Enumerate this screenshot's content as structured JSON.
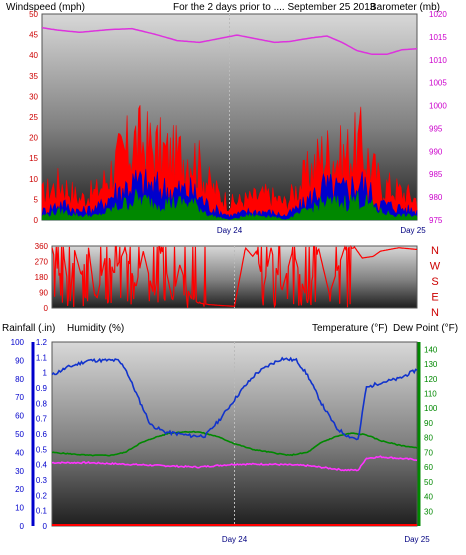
{
  "colors": {
    "wind_speed": "#ff0000",
    "wind_avg": "#0000cc",
    "wind_low": "#008800",
    "barometer": "#dd33dd",
    "humidity": "#1133cc",
    "rainfall": "#ff0000",
    "temperature": "#008800",
    "dew_point": "#ff33ff",
    "title": "#dddd00",
    "tick_red": "#cc0000",
    "tick_blue": "#0000cc",
    "tick_green": "#008800",
    "tick_magenta": "#cc00cc"
  },
  "header": {
    "windspeed_label": "Windspeed (mph)",
    "title": "For the 2 days prior to .... September 25 2013",
    "barometer_label": "Barometer (mb)"
  },
  "chart_data": [
    {
      "type": "line",
      "name": "wind-barometer",
      "x_ticks": [
        "Day 24",
        "Day 25"
      ],
      "y_left": {
        "label": "Windspeed (mph)",
        "range": [
          0,
          50
        ],
        "ticks": [
          0,
          5,
          10,
          15,
          20,
          25,
          30,
          35,
          40,
          45,
          50
        ]
      },
      "y_right": {
        "label": "Barometer (mb)",
        "range": [
          975,
          1020
        ],
        "ticks": [
          975,
          980,
          985,
          990,
          995,
          1000,
          1005,
          1010,
          1015,
          1020
        ]
      },
      "series": [
        {
          "name": "Barometer",
          "axis": "right",
          "x": [
            0,
            0.04,
            0.1,
            0.18,
            0.24,
            0.3,
            0.36,
            0.42,
            0.47,
            0.52,
            0.57,
            0.62,
            0.66,
            0.72,
            0.76,
            0.8,
            0.84,
            0.88,
            0.92,
            0.96,
            1
          ],
          "values": [
            1017,
            1016.5,
            1016,
            1016.6,
            1016.8,
            1015.6,
            1014.2,
            1013.8,
            1014.6,
            1015.4,
            1014.6,
            1013.8,
            1014,
            1014.8,
            1015.2,
            1013.8,
            1012,
            1011.2,
            1011.2,
            1012.2,
            1012.4
          ]
        },
        {
          "name": "Wind gust",
          "x": [
            0,
            0.05,
            0.1,
            0.15,
            0.2,
            0.25,
            0.3,
            0.35,
            0.4,
            0.45,
            0.5,
            0.55,
            0.6,
            0.65,
            0.7,
            0.75,
            0.8,
            0.85,
            0.9,
            0.95,
            1
          ],
          "values": [
            6,
            9,
            5,
            7,
            14,
            19,
            17,
            15,
            16,
            8,
            4,
            5,
            6,
            4,
            10,
            16,
            15,
            18,
            9,
            7,
            5
          ]
        },
        {
          "name": "Wind average",
          "x": [
            0,
            0.05,
            0.1,
            0.15,
            0.2,
            0.25,
            0.3,
            0.35,
            0.4,
            0.45,
            0.5,
            0.55,
            0.6,
            0.65,
            0.7,
            0.75,
            0.8,
            0.85,
            0.9,
            0.95,
            1
          ],
          "values": [
            2,
            4,
            2,
            3,
            7,
            9,
            8,
            7,
            7,
            3,
            1,
            2,
            2,
            1,
            4,
            8,
            7,
            9,
            4,
            3,
            2
          ]
        },
        {
          "name": "Wind low",
          "x": [
            0,
            0.05,
            0.1,
            0.15,
            0.2,
            0.25,
            0.3,
            0.35,
            0.4,
            0.45,
            0.5,
            0.55,
            0.6,
            0.65,
            0.7,
            0.75,
            0.8,
            0.85,
            0.9,
            0.95,
            1
          ],
          "values": [
            1,
            2,
            1,
            1,
            3,
            5,
            4,
            4,
            4,
            1,
            0,
            1,
            1,
            0,
            2,
            4,
            4,
            5,
            2,
            1,
            1
          ]
        }
      ]
    },
    {
      "type": "line",
      "name": "wind-direction",
      "y_left": {
        "range": [
          0,
          360
        ],
        "ticks": [
          0,
          90,
          180,
          270,
          360
        ]
      },
      "y_right_labels": [
        "N",
        "W",
        "S",
        "E",
        "N"
      ],
      "series": [
        {
          "name": "Wind direction",
          "x": [
            0,
            0.02,
            0.03,
            0.05,
            0.06,
            0.08,
            0.1,
            0.12,
            0.15,
            0.17,
            0.2,
            0.23,
            0.25,
            0.28,
            0.3,
            0.33,
            0.35,
            0.38,
            0.4,
            0.43,
            0.46,
            0.5,
            0.53,
            0.55,
            0.56,
            0.58,
            0.6,
            0.63,
            0.66,
            0.7,
            0.73,
            0.76,
            0.8,
            0.83,
            0.85,
            0.88,
            0.9,
            0.95,
            1
          ],
          "values": [
            350,
            180,
            340,
            40,
            350,
            190,
            350,
            20,
            340,
            200,
            345,
            120,
            330,
            60,
            350,
            40,
            250,
            60,
            30,
            20,
            15,
            10,
            350,
            300,
            330,
            120,
            350,
            100,
            340,
            30,
            350,
            80,
            340,
            350,
            290,
            300,
            330,
            350,
            340
          ]
        }
      ]
    },
    {
      "type": "line",
      "name": "temperature-humidity",
      "x_ticks": [
        "Day 24",
        "Day 25"
      ],
      "y_left_rain": {
        "label": "Rainfall (.in)",
        "range": [
          0,
          1.2
        ],
        "ticks": [
          0,
          0.1,
          0.2,
          0.3,
          0.4,
          0.5,
          0.6,
          0.7,
          0.8,
          0.9,
          1,
          1.1,
          1.2
        ]
      },
      "y_left_hum": {
        "label": "Humidity (%)",
        "range": [
          0,
          100
        ],
        "ticks": [
          0,
          10,
          20,
          30,
          40,
          50,
          60,
          70,
          80,
          90,
          100
        ]
      },
      "y_right": {
        "label_temp": "Temperature (°F)",
        "label_dew": "Dew Point (°F)",
        "range": [
          20,
          145
        ],
        "ticks": [
          30,
          40,
          50,
          60,
          70,
          80,
          90,
          100,
          110,
          120,
          130,
          140
        ]
      },
      "series": [
        {
          "name": "Humidity",
          "axis": "hum",
          "x": [
            0,
            0.04,
            0.1,
            0.14,
            0.18,
            0.2,
            0.24,
            0.27,
            0.31,
            0.35,
            0.38,
            0.42,
            0.46,
            0.52,
            0.56,
            0.6,
            0.63,
            0.67,
            0.7,
            0.74,
            0.78,
            0.81,
            0.84,
            0.86,
            0.9,
            0.95,
            1
          ],
          "values": [
            82,
            86,
            90,
            90,
            90,
            86,
            68,
            55,
            51,
            50,
            49,
            49,
            58,
            74,
            83,
            88,
            91,
            90,
            82,
            66,
            53,
            49,
            47,
            75,
            78,
            80,
            85
          ]
        },
        {
          "name": "Temperature",
          "axis": "temp",
          "x": [
            0,
            0.1,
            0.16,
            0.2,
            0.24,
            0.28,
            0.32,
            0.36,
            0.4,
            0.45,
            0.5,
            0.55,
            0.6,
            0.65,
            0.7,
            0.74,
            0.78,
            0.82,
            0.86,
            0.9,
            0.95,
            1
          ],
          "values": [
            70,
            68,
            68,
            70,
            76,
            80,
            83,
            84,
            84,
            81,
            76,
            72,
            70,
            68,
            70,
            77,
            81,
            83,
            82,
            78,
            75,
            73
          ]
        },
        {
          "name": "Dew point",
          "axis": "temp",
          "x": [
            0,
            0.1,
            0.2,
            0.3,
            0.4,
            0.5,
            0.6,
            0.7,
            0.8,
            0.84,
            0.86,
            0.9,
            0.95,
            1
          ],
          "values": [
            63,
            63,
            62,
            61,
            60,
            62,
            62,
            61,
            58,
            58,
            66,
            67,
            66,
            65
          ]
        },
        {
          "name": "Rainfall",
          "axis": "rain",
          "x": [
            0,
            1
          ],
          "values": [
            0,
            0
          ]
        }
      ]
    }
  ]
}
